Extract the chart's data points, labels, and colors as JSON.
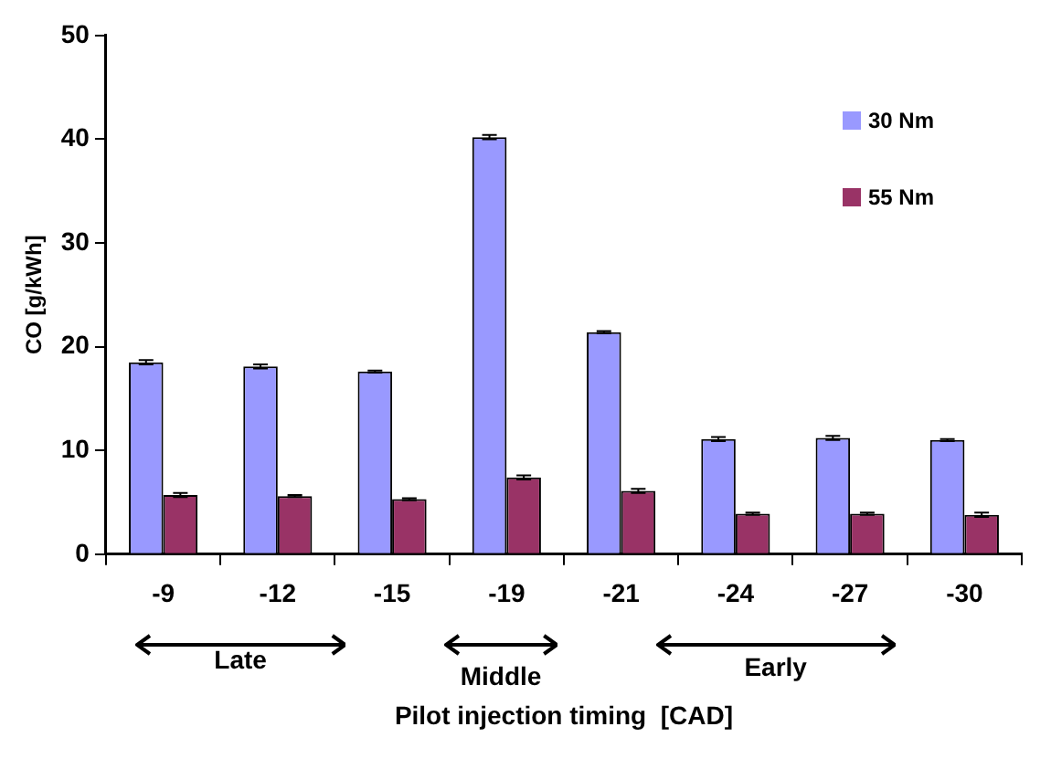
{
  "chart_data": {
    "type": "bar",
    "ylabel": "CO [g/kWh]",
    "xlabel": "Pilot injection timing  [CAD]",
    "categories": [
      "-9",
      "-12",
      "-15",
      "-19",
      "-21",
      "-24",
      "-27",
      "-30"
    ],
    "series": [
      {
        "name": "30 Nm",
        "color": "#9999ff",
        "values": [
          18.5,
          18.1,
          17.6,
          40.2,
          21.4,
          11.1,
          11.2,
          11.0
        ],
        "errors": [
          0.2,
          0.2,
          0.1,
          0.2,
          0.1,
          0.2,
          0.2,
          0.1
        ]
      },
      {
        "name": "55 Nm",
        "color": "#993366",
        "values": [
          5.7,
          5.6,
          5.3,
          7.4,
          6.1,
          3.9,
          3.9,
          3.8
        ],
        "errors": [
          0.2,
          0.1,
          0.1,
          0.2,
          0.2,
          0.1,
          0.1,
          0.2
        ]
      }
    ],
    "ylim": [
      0,
      50
    ],
    "yticks": [
      0,
      10,
      20,
      30,
      40,
      50
    ],
    "grid": false,
    "legend": "top right",
    "annotations": [
      "Late",
      "Middle",
      "Early"
    ]
  }
}
